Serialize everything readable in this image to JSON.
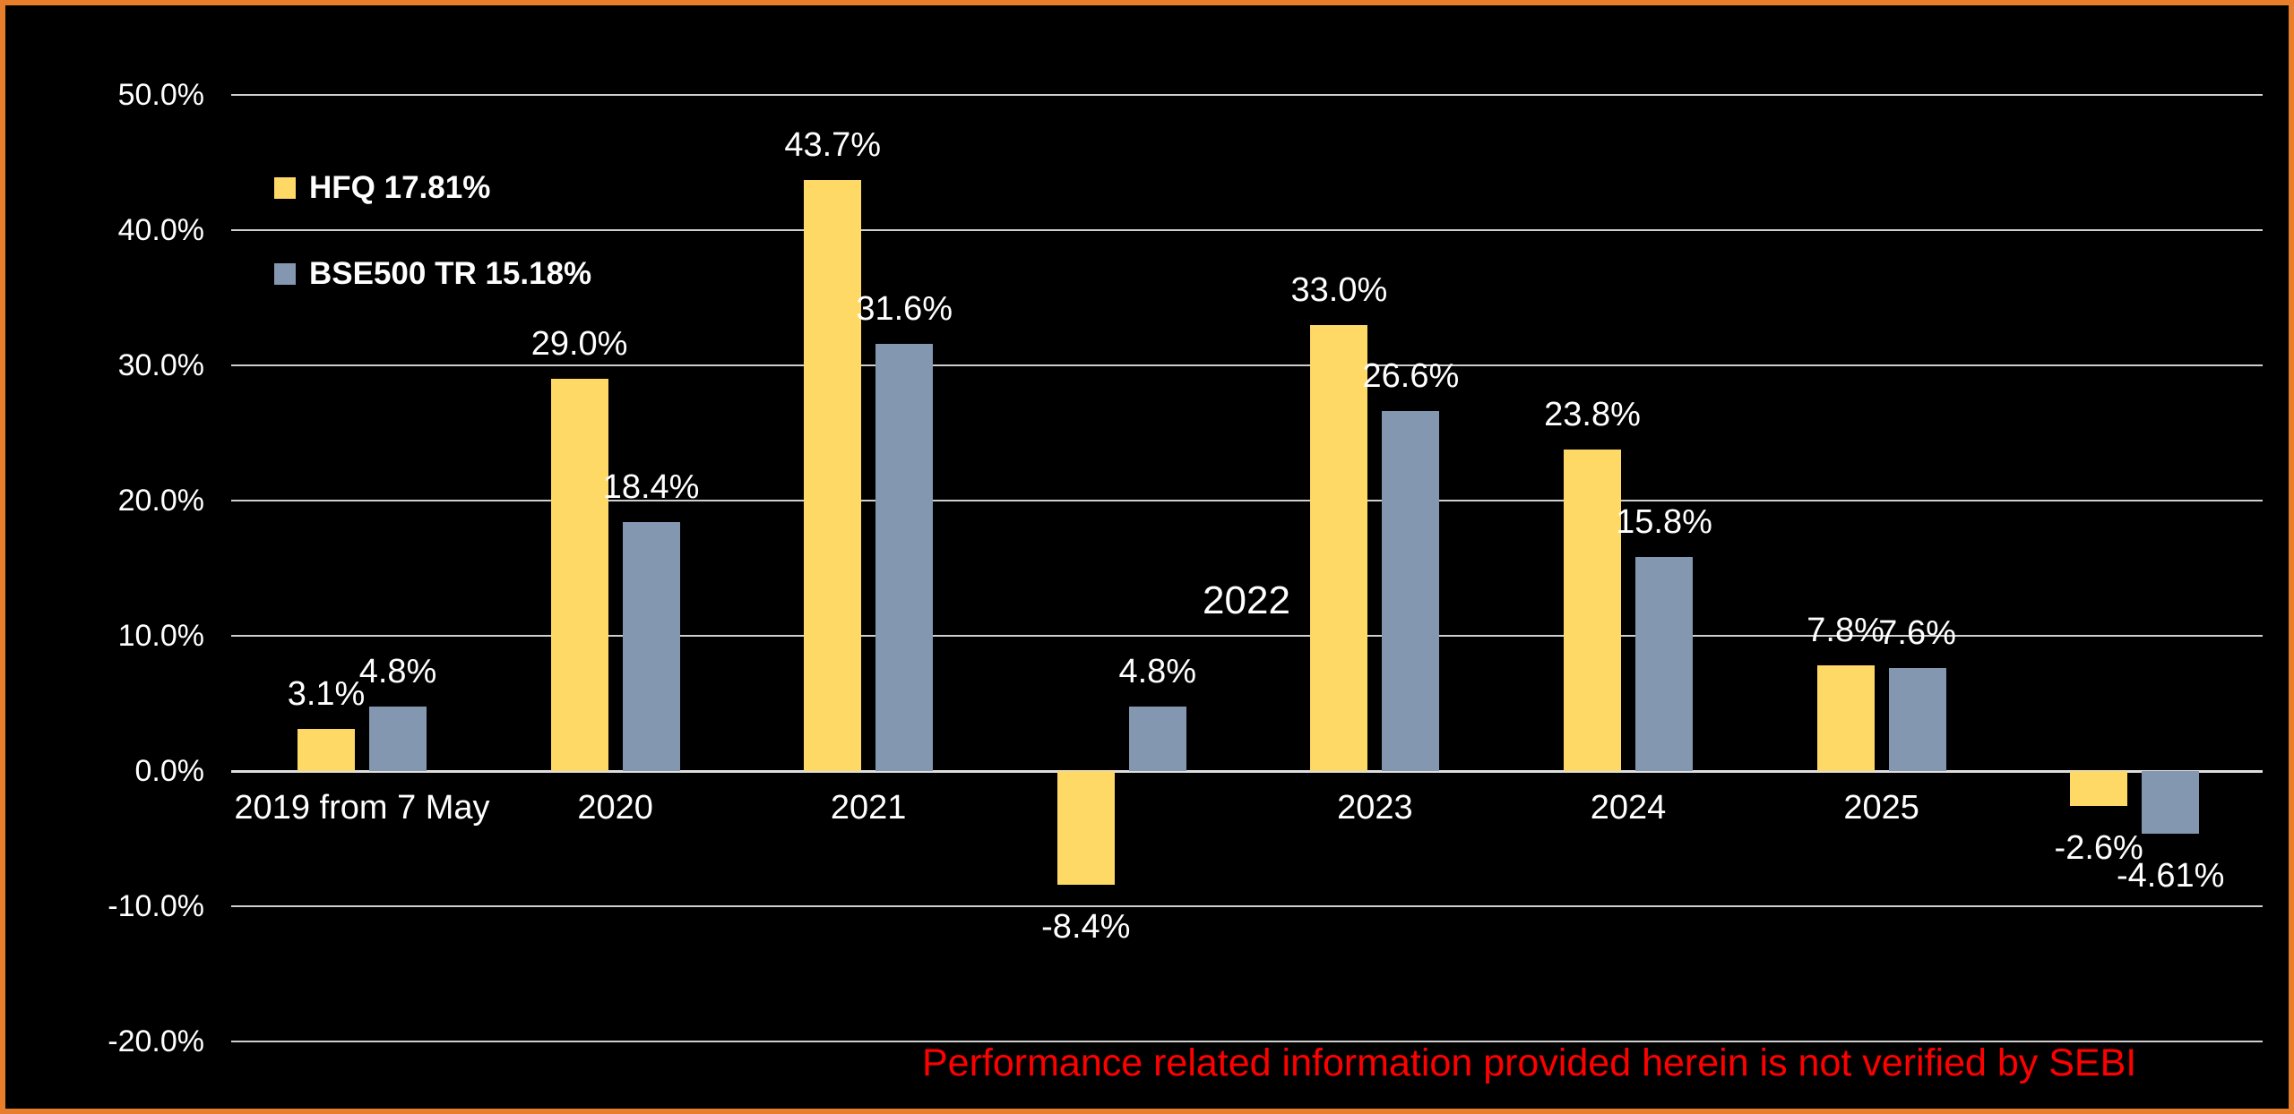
{
  "window": {
    "background": "#000000",
    "border_color": "#E87E2B"
  },
  "chart_data": {
    "type": "bar",
    "title": "",
    "categories": [
      "2019 from 7 May",
      "2020",
      "2021",
      "2022",
      "2023",
      "2024",
      "2025",
      ""
    ],
    "series": [
      {
        "name": "HFQ 17.81%",
        "color": "#FFD966",
        "values": [
          3.1,
          29.0,
          43.7,
          -8.4,
          33.0,
          23.8,
          7.8,
          -2.6
        ],
        "labels": [
          "3.1%",
          "29.0%",
          "43.7%",
          "-8.4%",
          "33.0%",
          "23.8%",
          "7.8%",
          "-2.6%"
        ]
      },
      {
        "name": "BSE500 TR 15.18%",
        "color": "#8497B0",
        "values": [
          4.8,
          18.4,
          31.6,
          4.8,
          26.6,
          15.8,
          7.6,
          -4.61
        ],
        "labels": [
          "4.8%",
          "18.4%",
          "31.6%",
          "4.8%",
          "26.6%",
          "15.8%",
          "7.6%",
          "-4.61%"
        ]
      }
    ],
    "y_axis": {
      "min": -20,
      "max": 50,
      "step": 10,
      "ticks": [
        {
          "value": 50,
          "label": "50.0%"
        },
        {
          "value": 40,
          "label": "40.0%"
        },
        {
          "value": 30,
          "label": "30.0%"
        },
        {
          "value": 20,
          "label": "20.0%"
        },
        {
          "value": 10,
          "label": "10.0%"
        },
        {
          "value": 0,
          "label": "0.0%"
        },
        {
          "value": -10,
          "label": "-10.0%"
        },
        {
          "value": -20,
          "label": "-20.0%"
        }
      ]
    },
    "legend_position": "top-left",
    "grid": true,
    "layout_hints": {
      "displaced_category_index": 3,
      "hidden_category_indices": [
        7
      ],
      "gridline_color": "#CFCFCF",
      "zero_line_color": "#DEDEDE",
      "text_color": "#FFFFFF"
    },
    "annotation": {
      "text": "Performance related information provided herein is not verified by SEBI",
      "color": "#FF0000"
    }
  }
}
